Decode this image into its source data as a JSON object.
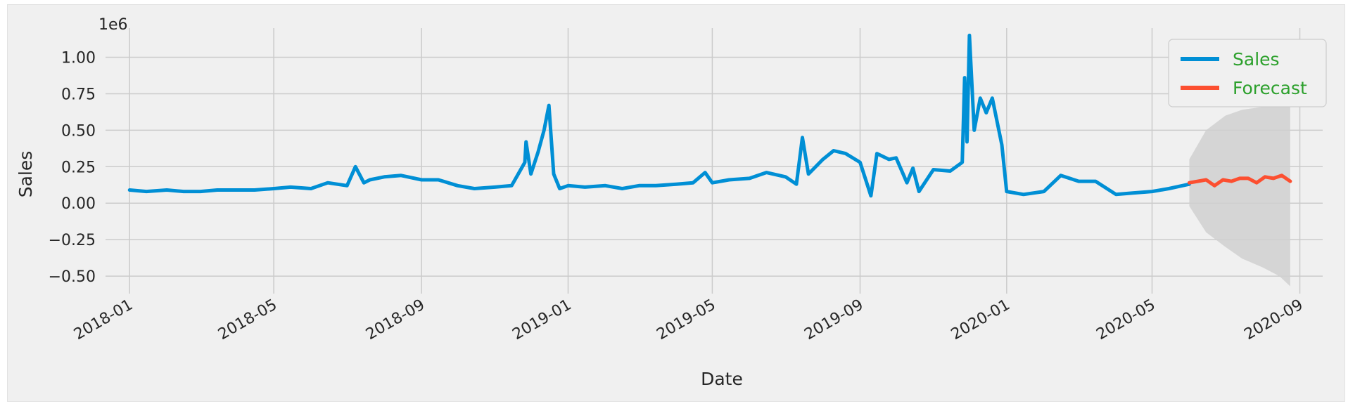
{
  "chart_data": {
    "type": "line",
    "xlabel": "Date",
    "ylabel": "Sales",
    "y_multiplier_label": "1e6",
    "ylim": [
      -0.62,
      1.2
    ],
    "xlim": [
      "2017-12-12",
      "2020-09-20"
    ],
    "grid": true,
    "legend_position": "top-right",
    "legend_text_color": "#2ca02c",
    "x_ticks": [
      "2018-01",
      "2018-05",
      "2018-09",
      "2019-01",
      "2019-05",
      "2019-09",
      "2020-01",
      "2020-05",
      "2020-09"
    ],
    "y_ticks": [
      "−0.50",
      "−0.25",
      "0.00",
      "0.25",
      "0.50",
      "0.75",
      "1.00"
    ],
    "series": [
      {
        "name": "Sales",
        "color": "#008fd5",
        "x": [
          "2018-01-01",
          "2018-01-15",
          "2018-02-01",
          "2018-02-15",
          "2018-03-01",
          "2018-03-15",
          "2018-04-01",
          "2018-04-15",
          "2018-05-01",
          "2018-05-15",
          "2018-06-01",
          "2018-06-15",
          "2018-07-01",
          "2018-07-08",
          "2018-07-15",
          "2018-07-20",
          "2018-08-01",
          "2018-08-15",
          "2018-09-01",
          "2018-09-15",
          "2018-10-01",
          "2018-10-15",
          "2018-11-01",
          "2018-11-15",
          "2018-11-26",
          "2018-11-27",
          "2018-12-01",
          "2018-12-07",
          "2018-12-12",
          "2018-12-16",
          "2018-12-20",
          "2018-12-25",
          "2019-01-01",
          "2019-01-15",
          "2019-02-01",
          "2019-02-15",
          "2019-03-01",
          "2019-03-15",
          "2019-04-01",
          "2019-04-15",
          "2019-04-25",
          "2019-05-01",
          "2019-05-15",
          "2019-06-01",
          "2019-06-15",
          "2019-07-01",
          "2019-07-10",
          "2019-07-15",
          "2019-07-20",
          "2019-08-01",
          "2019-08-10",
          "2019-08-20",
          "2019-09-01",
          "2019-09-10",
          "2019-09-15",
          "2019-09-25",
          "2019-10-01",
          "2019-10-10",
          "2019-10-15",
          "2019-10-20",
          "2019-11-01",
          "2019-11-15",
          "2019-11-25",
          "2019-11-27",
          "2019-11-29",
          "2019-12-01",
          "2019-12-05",
          "2019-12-10",
          "2019-12-15",
          "2019-12-20",
          "2019-12-28",
          "2020-01-01",
          "2020-01-15",
          "2020-02-01",
          "2020-02-15",
          "2020-03-01",
          "2020-03-15",
          "2020-04-01",
          "2020-04-15",
          "2020-05-01",
          "2020-05-15",
          "2020-06-01"
        ],
        "values": [
          0.09,
          0.08,
          0.09,
          0.08,
          0.08,
          0.09,
          0.09,
          0.09,
          0.1,
          0.11,
          0.1,
          0.14,
          0.12,
          0.25,
          0.14,
          0.16,
          0.18,
          0.19,
          0.16,
          0.16,
          0.12,
          0.1,
          0.11,
          0.12,
          0.28,
          0.42,
          0.2,
          0.35,
          0.5,
          0.67,
          0.2,
          0.1,
          0.12,
          0.11,
          0.12,
          0.1,
          0.12,
          0.12,
          0.13,
          0.14,
          0.21,
          0.14,
          0.16,
          0.17,
          0.21,
          0.18,
          0.13,
          0.45,
          0.2,
          0.3,
          0.36,
          0.34,
          0.28,
          0.05,
          0.34,
          0.3,
          0.31,
          0.14,
          0.24,
          0.08,
          0.23,
          0.22,
          0.28,
          0.86,
          0.42,
          1.15,
          0.5,
          0.72,
          0.62,
          0.72,
          0.4,
          0.08,
          0.06,
          0.08,
          0.19,
          0.15,
          0.15,
          0.06,
          0.07,
          0.08,
          0.1,
          0.13
        ]
      },
      {
        "name": "Forecast",
        "color": "#fc4f30",
        "x": [
          "2020-06-01",
          "2020-06-08",
          "2020-06-15",
          "2020-06-22",
          "2020-06-29",
          "2020-07-06",
          "2020-07-13",
          "2020-07-20",
          "2020-07-27",
          "2020-08-03",
          "2020-08-10",
          "2020-08-17",
          "2020-08-24"
        ],
        "values": [
          0.14,
          0.15,
          0.16,
          0.12,
          0.16,
          0.15,
          0.17,
          0.17,
          0.14,
          0.18,
          0.17,
          0.19,
          0.15
        ]
      }
    ],
    "confidence_band": {
      "color": "#d0d0d0",
      "x": [
        "2020-06-01",
        "2020-06-15",
        "2020-07-01",
        "2020-07-15",
        "2020-08-01",
        "2020-08-15",
        "2020-08-24"
      ],
      "upper": [
        0.3,
        0.5,
        0.6,
        0.64,
        0.66,
        0.68,
        0.7
      ],
      "lower": [
        -0.02,
        -0.2,
        -0.3,
        -0.38,
        -0.44,
        -0.5,
        -0.57
      ]
    }
  }
}
